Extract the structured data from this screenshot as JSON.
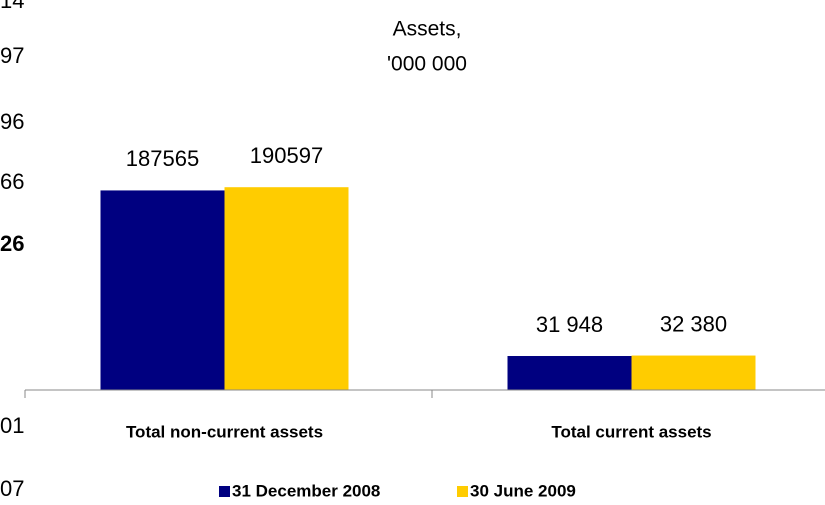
{
  "chart_data": {
    "type": "bar",
    "title": "Assets,",
    "subtitle": "'000 000",
    "categories": [
      "Total non-current assets",
      "Total current assets"
    ],
    "series": [
      {
        "name": "31 December 2008",
        "color": "#000080",
        "values": [
          187565,
          31948
        ],
        "value_labels": [
          "187565",
          "31 948"
        ]
      },
      {
        "name": "30 June 2009",
        "color": "#ffcc00",
        "values": [
          190597,
          32380
        ],
        "value_labels": [
          "190597",
          "32 380"
        ]
      }
    ],
    "ylim": [
      0,
      250000
    ],
    "legend": "bottom",
    "annotations": [
      "14",
      "97",
      "96",
      "66",
      "26",
      "01",
      "07"
    ]
  }
}
